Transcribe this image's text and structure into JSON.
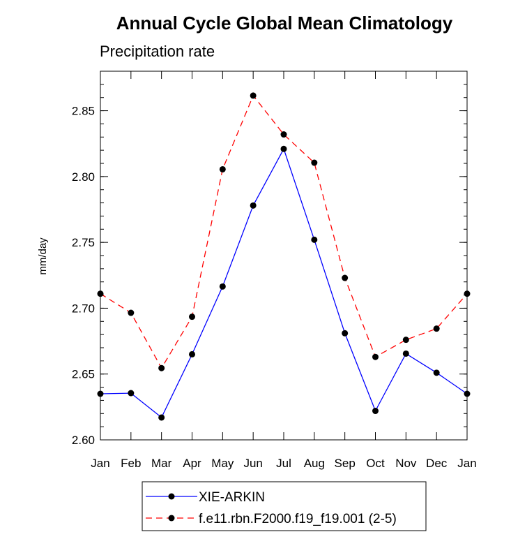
{
  "chart_data": {
    "type": "line",
    "title": "Annual Cycle Global Mean Climatology",
    "subtitle": "Precipitation rate",
    "xlabel": "",
    "ylabel": "mm/day",
    "categories": [
      "Jan",
      "Feb",
      "Mar",
      "Apr",
      "May",
      "Jun",
      "Jul",
      "Aug",
      "Sep",
      "Oct",
      "Nov",
      "Dec",
      "Jan"
    ],
    "ylim": [
      2.6,
      2.88
    ],
    "yticks": [
      2.6,
      2.65,
      2.7,
      2.75,
      2.8,
      2.85
    ],
    "ytick_labels": [
      "2.60",
      "2.65",
      "2.70",
      "2.75",
      "2.80",
      "2.85"
    ],
    "series": [
      {
        "name": "XIE-ARKIN",
        "color": "#0000ff",
        "dash": "solid",
        "values": [
          2.635,
          2.6355,
          2.617,
          2.665,
          2.7165,
          2.778,
          2.821,
          2.752,
          2.681,
          2.622,
          2.6655,
          2.651,
          2.635
        ]
      },
      {
        "name": "f.e11.rbn.F2000.f19_f19.001 (2-5)",
        "color": "#ff0000",
        "dash": "dashed",
        "values": [
          2.711,
          2.6965,
          2.6545,
          2.6935,
          2.8055,
          2.8615,
          2.832,
          2.8105,
          2.723,
          2.663,
          2.676,
          2.6845,
          2.711
        ]
      }
    ],
    "legend": "bottom-center"
  }
}
